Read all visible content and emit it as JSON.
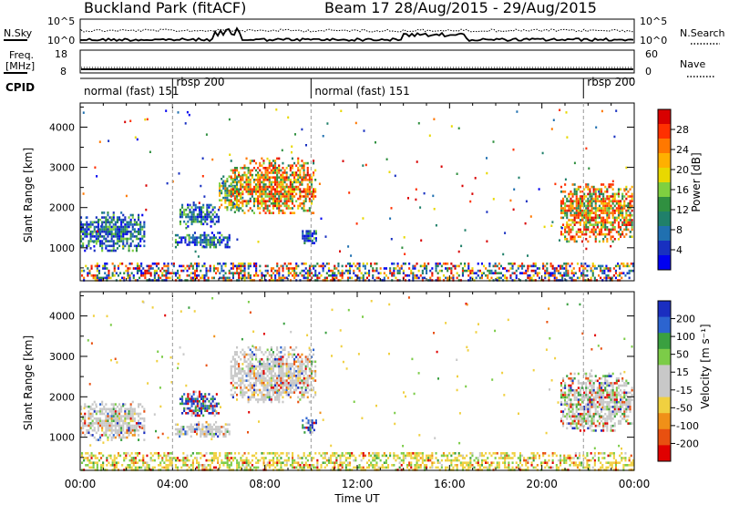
{
  "header": {
    "title": "Buckland Park (fitACF)",
    "subtitle": "Beam 17  28/Aug/2015 - 29/Aug/2015"
  },
  "top_panel": {
    "left_label": "N.Sky",
    "left_ticks": [
      "10^5",
      "10^0"
    ],
    "right_label": "N.Search",
    "right_ticks": [
      "10^5",
      "10^0"
    ]
  },
  "freq_panel": {
    "left_label_1": "Freq.",
    "left_label_2": "[MHz]",
    "left_ticks": [
      "18",
      "8"
    ],
    "right_label": "Nave",
    "right_ticks": [
      "60",
      "0"
    ]
  },
  "cpid_panel": {
    "label": "CPID",
    "modes": [
      {
        "name": "normal (fast) 151",
        "start_h": 0,
        "end_h": 4.0
      },
      {
        "name": "rbsp 200",
        "start_h": 4.0,
        "end_h": 10.0
      },
      {
        "name": "normal (fast) 151",
        "start_h": 10.0,
        "end_h": 21.8
      },
      {
        "name": "rbsp 200",
        "start_h": 21.8,
        "end_h": 24.0
      }
    ]
  },
  "chart_data": [
    {
      "type": "heatmap",
      "name": "power",
      "ylabel": "Slant Range [km]",
      "ylim": [
        180,
        4600
      ],
      "yticks": [
        1000,
        2000,
        3000,
        4000
      ],
      "xlim": [
        0,
        24
      ],
      "colorbar": {
        "label": "Power [dB]",
        "ticks": [
          "28",
          "24",
          "20",
          "16",
          "12",
          "8",
          "4"
        ],
        "colors": [
          "#d80000",
          "#ff3000",
          "#ff7800",
          "#ffb000",
          "#e8d800",
          "#7fd040",
          "#309040",
          "#20806a",
          "#2070b0",
          "#1830c0",
          "#0000f0"
        ]
      },
      "echo_regions": [
        {
          "t0": 0.0,
          "t1": 2.8,
          "r0": 950,
          "r1": 1900,
          "level": "low"
        },
        {
          "t0": 4.1,
          "t1": 6.5,
          "r0": 1000,
          "r1": 1400,
          "level": "low"
        },
        {
          "t0": 4.3,
          "t1": 6.0,
          "r0": 1550,
          "r1": 2150,
          "level": "low"
        },
        {
          "t0": 6.0,
          "t1": 7.0,
          "r0": 1900,
          "r1": 2800,
          "level": "mid"
        },
        {
          "t0": 6.5,
          "t1": 10.2,
          "r0": 1850,
          "r1": 3250,
          "level": "high"
        },
        {
          "t0": 9.6,
          "t1": 10.2,
          "r0": 1100,
          "r1": 1500,
          "level": "low"
        },
        {
          "t0": 20.8,
          "t1": 23.9,
          "r0": 1150,
          "r1": 2600,
          "level": "high"
        }
      ]
    },
    {
      "type": "heatmap",
      "name": "velocity",
      "ylabel": "Slant Range [km]",
      "ylim": [
        180,
        4600
      ],
      "yticks": [
        1000,
        2000,
        3000,
        4000
      ],
      "xlim": [
        0,
        24
      ],
      "xticks": [
        "00:00",
        "04:00",
        "08:00",
        "12:00",
        "16:00",
        "20:00",
        "00:00"
      ],
      "xlabel": "Time UT",
      "colorbar": {
        "label": "Velocity [m s⁻¹]",
        "ticks": [
          "200",
          "100",
          "50",
          "15",
          "-15",
          "-50",
          "-100",
          "-200"
        ],
        "colors": [
          "#1a2ec0",
          "#2c64d0",
          "#3aa040",
          "#7ccc48",
          "#c8c8c8",
          "#c8c8c8",
          "#f0d040",
          "#f09018",
          "#e85010",
          "#e00000"
        ]
      },
      "echo_regions": [
        {
          "t0": 0.0,
          "t1": 2.8,
          "r0": 950,
          "r1": 1900,
          "level": "grey"
        },
        {
          "t0": 4.1,
          "t1": 6.5,
          "r0": 1000,
          "r1": 1400,
          "level": "grey"
        },
        {
          "t0": 4.3,
          "t1": 6.0,
          "r0": 1550,
          "r1": 2150,
          "level": "blue"
        },
        {
          "t0": 6.5,
          "t1": 10.2,
          "r0": 1850,
          "r1": 3250,
          "level": "grey"
        },
        {
          "t0": 9.6,
          "t1": 10.2,
          "r0": 1100,
          "r1": 1500,
          "level": "blue"
        },
        {
          "t0": 20.8,
          "t1": 23.9,
          "r0": 1150,
          "r1": 2600,
          "level": "green"
        }
      ]
    }
  ]
}
